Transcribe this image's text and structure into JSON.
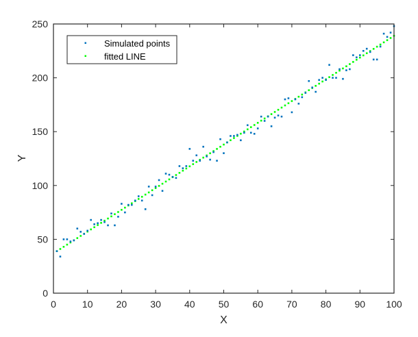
{
  "chart_data": {
    "type": "scatter",
    "title": "",
    "xlabel": "X",
    "ylabel": "Y",
    "xlim": [
      0,
      100
    ],
    "ylim": [
      0,
      250
    ],
    "xticks": [
      0,
      10,
      20,
      30,
      40,
      50,
      60,
      70,
      80,
      90,
      100
    ],
    "yticks": [
      0,
      50,
      100,
      150,
      200,
      250
    ],
    "grid": false,
    "legend_position": "upper left",
    "series": [
      {
        "name": "Simulated points",
        "marker": "point",
        "color": "#0072BD",
        "x": [
          1,
          2,
          3,
          4,
          5,
          6,
          7,
          8,
          9,
          10,
          11,
          12,
          13,
          14,
          15,
          16,
          17,
          18,
          19,
          20,
          21,
          22,
          23,
          24,
          25,
          26,
          27,
          28,
          29,
          30,
          31,
          32,
          33,
          34,
          35,
          36,
          37,
          38,
          39,
          40,
          41,
          42,
          43,
          44,
          45,
          46,
          47,
          48,
          49,
          50,
          51,
          52,
          53,
          54,
          55,
          56,
          57,
          58,
          59,
          60,
          61,
          62,
          63,
          64,
          65,
          66,
          67,
          68,
          69,
          70,
          71,
          72,
          73,
          74,
          75,
          76,
          77,
          78,
          79,
          80,
          81,
          82,
          83,
          84,
          85,
          86,
          87,
          88,
          89,
          90,
          91,
          92,
          93,
          94,
          95,
          96,
          97,
          98,
          99,
          100
        ],
        "values": [
          39,
          34,
          50,
          50,
          48,
          49,
          60,
          57,
          55,
          58,
          68,
          64,
          65,
          68,
          66,
          63,
          74,
          63,
          71,
          83,
          75,
          82,
          82,
          86,
          90,
          86,
          78,
          99,
          91,
          99,
          105,
          95,
          111,
          110,
          108,
          107,
          118,
          116,
          118,
          134,
          123,
          128,
          123,
          136,
          127,
          124,
          131,
          123,
          143,
          130,
          140,
          146,
          146,
          147,
          142,
          149,
          156,
          149,
          148,
          153,
          164,
          160,
          164,
          155,
          163,
          165,
          164,
          180,
          181,
          168,
          180,
          176,
          182,
          186,
          197,
          191,
          187,
          198,
          200,
          198,
          212,
          200,
          200,
          208,
          199,
          207,
          208,
          221,
          219,
          221,
          225,
          227,
          224,
          217,
          217,
          229,
          241,
          238,
          242,
          248
        ]
      },
      {
        "name": "fitted LINE",
        "marker": "point",
        "color": "#00FF00",
        "intercept": 37,
        "slope": 2.02,
        "x_start": 1,
        "x_end": 100
      }
    ]
  },
  "legend": {
    "items": [
      {
        "label": "Simulated points",
        "color": "#0072BD"
      },
      {
        "label": "fitted LINE",
        "color": "#00FF00"
      }
    ]
  },
  "axes": {
    "xlabel": "X",
    "ylabel": "Y"
  }
}
